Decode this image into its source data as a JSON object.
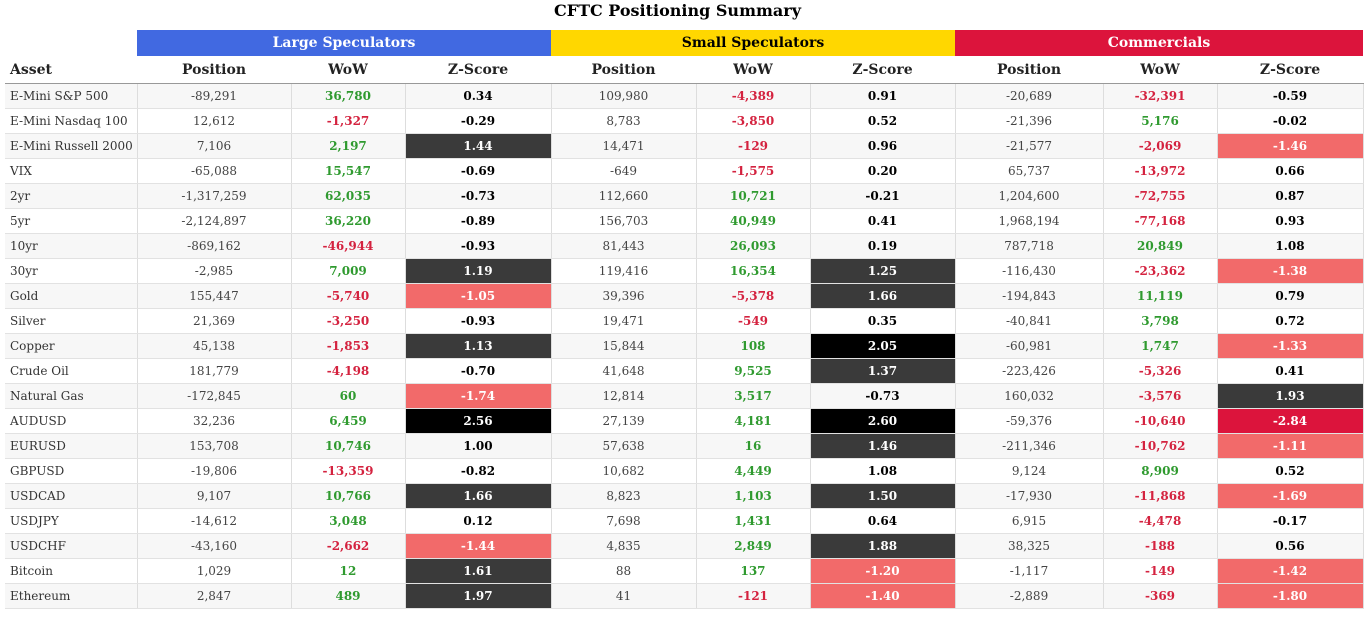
{
  "title": "CFTC Positioning Summary",
  "colors": {
    "large_speculators": "#4169e1",
    "small_speculators": "#ffd700",
    "commercials": "#dc143c",
    "positive_wow": "#2f9a2f",
    "negative_wow": "#d4223f",
    "z_very_high": "#000000",
    "z_high": "#3a3a3a",
    "z_low": "#f26a6a",
    "z_very_low": "#dc143c"
  },
  "chart_data": {
    "type": "table",
    "title": "CFTC Positioning Summary",
    "groups": [
      "Large Speculators",
      "Small Speculators",
      "Commercials"
    ],
    "columns": [
      "Asset",
      "Position",
      "WoW",
      "Z-Score",
      "Position",
      "WoW",
      "Z-Score",
      "Position",
      "WoW",
      "Z-Score"
    ],
    "rows": [
      {
        "asset": "E-Mini S&P 500",
        "ls": {
          "position": "-89,291",
          "wow": "36,780",
          "z": "0.34"
        },
        "ss": {
          "position": "109,980",
          "wow": "-4,389",
          "z": "0.91"
        },
        "co": {
          "position": "-20,689",
          "wow": "-32,391",
          "z": "-0.59"
        }
      },
      {
        "asset": "E-Mini Nasdaq 100",
        "ls": {
          "position": "12,612",
          "wow": "-1,327",
          "z": "-0.29"
        },
        "ss": {
          "position": "8,783",
          "wow": "-3,850",
          "z": "0.52"
        },
        "co": {
          "position": "-21,396",
          "wow": "5,176",
          "z": "-0.02"
        }
      },
      {
        "asset": "E-Mini Russell 2000",
        "ls": {
          "position": "7,106",
          "wow": "2,197",
          "z": "1.44"
        },
        "ss": {
          "position": "14,471",
          "wow": "-129",
          "z": "0.96"
        },
        "co": {
          "position": "-21,577",
          "wow": "-2,069",
          "z": "-1.46"
        }
      },
      {
        "asset": "VIX",
        "ls": {
          "position": "-65,088",
          "wow": "15,547",
          "z": "-0.69"
        },
        "ss": {
          "position": "-649",
          "wow": "-1,575",
          "z": "0.20"
        },
        "co": {
          "position": "65,737",
          "wow": "-13,972",
          "z": "0.66"
        }
      },
      {
        "asset": "2yr",
        "ls": {
          "position": "-1,317,259",
          "wow": "62,035",
          "z": "-0.73"
        },
        "ss": {
          "position": "112,660",
          "wow": "10,721",
          "z": "-0.21"
        },
        "co": {
          "position": "1,204,600",
          "wow": "-72,755",
          "z": "0.87"
        }
      },
      {
        "asset": "5yr",
        "ls": {
          "position": "-2,124,897",
          "wow": "36,220",
          "z": "-0.89"
        },
        "ss": {
          "position": "156,703",
          "wow": "40,949",
          "z": "0.41"
        },
        "co": {
          "position": "1,968,194",
          "wow": "-77,168",
          "z": "0.93"
        }
      },
      {
        "asset": "10yr",
        "ls": {
          "position": "-869,162",
          "wow": "-46,944",
          "z": "-0.93"
        },
        "ss": {
          "position": "81,443",
          "wow": "26,093",
          "z": "0.19"
        },
        "co": {
          "position": "787,718",
          "wow": "20,849",
          "z": "1.08"
        }
      },
      {
        "asset": "30yr",
        "ls": {
          "position": "-2,985",
          "wow": "7,009",
          "z": "1.19"
        },
        "ss": {
          "position": "119,416",
          "wow": "16,354",
          "z": "1.25"
        },
        "co": {
          "position": "-116,430",
          "wow": "-23,362",
          "z": "-1.38"
        }
      },
      {
        "asset": "Gold",
        "ls": {
          "position": "155,447",
          "wow": "-5,740",
          "z": "-1.05"
        },
        "ss": {
          "position": "39,396",
          "wow": "-5,378",
          "z": "1.66"
        },
        "co": {
          "position": "-194,843",
          "wow": "11,119",
          "z": "0.79"
        }
      },
      {
        "asset": "Silver",
        "ls": {
          "position": "21,369",
          "wow": "-3,250",
          "z": "-0.93"
        },
        "ss": {
          "position": "19,471",
          "wow": "-549",
          "z": "0.35"
        },
        "co": {
          "position": "-40,841",
          "wow": "3,798",
          "z": "0.72"
        }
      },
      {
        "asset": "Copper",
        "ls": {
          "position": "45,138",
          "wow": "-1,853",
          "z": "1.13"
        },
        "ss": {
          "position": "15,844",
          "wow": "108",
          "z": "2.05"
        },
        "co": {
          "position": "-60,981",
          "wow": "1,747",
          "z": "-1.33"
        }
      },
      {
        "asset": "Crude Oil",
        "ls": {
          "position": "181,779",
          "wow": "-4,198",
          "z": "-0.70"
        },
        "ss": {
          "position": "41,648",
          "wow": "9,525",
          "z": "1.37"
        },
        "co": {
          "position": "-223,426",
          "wow": "-5,326",
          "z": "0.41"
        }
      },
      {
        "asset": "Natural Gas",
        "ls": {
          "position": "-172,845",
          "wow": "60",
          "z": "-1.74"
        },
        "ss": {
          "position": "12,814",
          "wow": "3,517",
          "z": "-0.73"
        },
        "co": {
          "position": "160,032",
          "wow": "-3,576",
          "z": "1.93"
        }
      },
      {
        "asset": "AUDUSD",
        "ls": {
          "position": "32,236",
          "wow": "6,459",
          "z": "2.56"
        },
        "ss": {
          "position": "27,139",
          "wow": "4,181",
          "z": "2.60"
        },
        "co": {
          "position": "-59,376",
          "wow": "-10,640",
          "z": "-2.84"
        }
      },
      {
        "asset": "EURUSD",
        "ls": {
          "position": "153,708",
          "wow": "10,746",
          "z": "1.00"
        },
        "ss": {
          "position": "57,638",
          "wow": "16",
          "z": "1.46"
        },
        "co": {
          "position": "-211,346",
          "wow": "-10,762",
          "z": "-1.11"
        }
      },
      {
        "asset": "GBPUSD",
        "ls": {
          "position": "-19,806",
          "wow": "-13,359",
          "z": "-0.82"
        },
        "ss": {
          "position": "10,682",
          "wow": "4,449",
          "z": "1.08"
        },
        "co": {
          "position": "9,124",
          "wow": "8,909",
          "z": "0.52"
        }
      },
      {
        "asset": "USDCAD",
        "ls": {
          "position": "9,107",
          "wow": "10,766",
          "z": "1.66"
        },
        "ss": {
          "position": "8,823",
          "wow": "1,103",
          "z": "1.50"
        },
        "co": {
          "position": "-17,930",
          "wow": "-11,868",
          "z": "-1.69"
        }
      },
      {
        "asset": "USDJPY",
        "ls": {
          "position": "-14,612",
          "wow": "3,048",
          "z": "0.12"
        },
        "ss": {
          "position": "7,698",
          "wow": "1,431",
          "z": "0.64"
        },
        "co": {
          "position": "6,915",
          "wow": "-4,478",
          "z": "-0.17"
        }
      },
      {
        "asset": "USDCHF",
        "ls": {
          "position": "-43,160",
          "wow": "-2,662",
          "z": "-1.44"
        },
        "ss": {
          "position": "4,835",
          "wow": "2,849",
          "z": "1.88"
        },
        "co": {
          "position": "38,325",
          "wow": "-188",
          "z": "0.56"
        }
      },
      {
        "asset": "Bitcoin",
        "ls": {
          "position": "1,029",
          "wow": "12",
          "z": "1.61"
        },
        "ss": {
          "position": "88",
          "wow": "137",
          "z": "-1.20"
        },
        "co": {
          "position": "-1,117",
          "wow": "-149",
          "z": "-1.42"
        }
      },
      {
        "asset": "Ethereum",
        "ls": {
          "position": "2,847",
          "wow": "489",
          "z": "1.97"
        },
        "ss": {
          "position": "41",
          "wow": "-121",
          "z": "-1.40"
        },
        "co": {
          "position": "-2,889",
          "wow": "-369",
          "z": "-1.80"
        }
      }
    ]
  }
}
